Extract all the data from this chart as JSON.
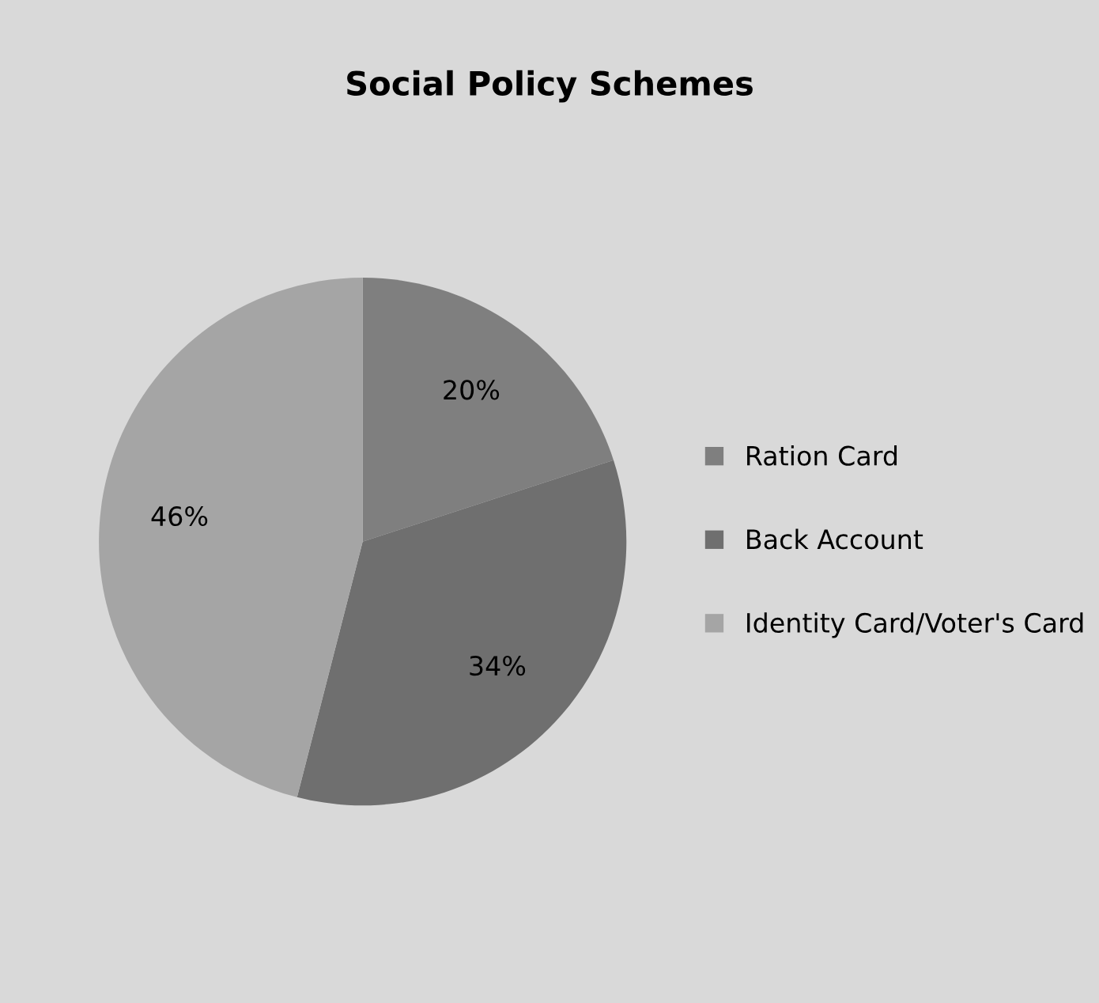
{
  "chart_data": {
    "type": "pie",
    "title": "Social Policy Schemes",
    "categories": [
      "Ration Card",
      "Back Account",
      "Identity Card/Voter's Card"
    ],
    "values": [
      20,
      34,
      46
    ],
    "colors": [
      "#7f7f7f",
      "#6f6f6f",
      "#a5a5a5"
    ],
    "value_labels": [
      "20%",
      "34%",
      "46%"
    ],
    "legend": "right"
  }
}
